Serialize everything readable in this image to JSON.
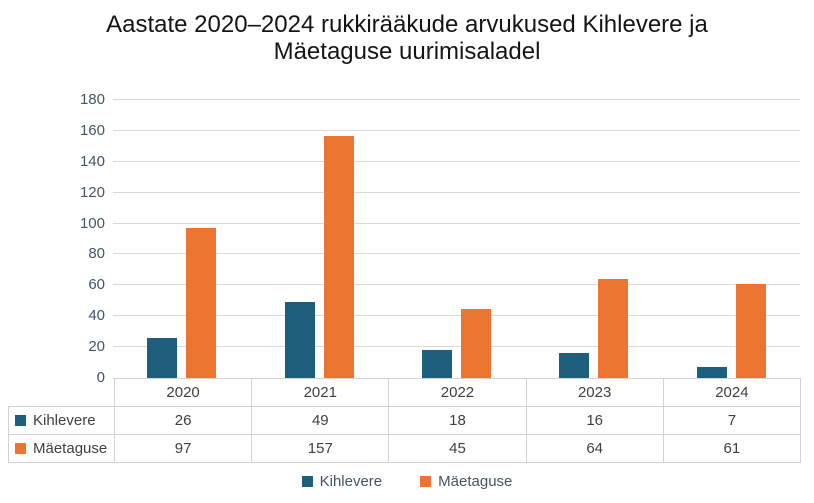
{
  "header": {
    "lines": [
      "Aastate 2020–2024 rukkirääkude arvukused Kihlevere ja",
      "Mäetaguse uurimisaladel"
    ]
  },
  "chart_data": {
    "type": "bar",
    "title": "Aastate 2020–2024 rukkirääkude arvukused Kihlevere ja Mäetaguse uurimisaladel",
    "categories": [
      "2020",
      "2021",
      "2022",
      "2023",
      "2024"
    ],
    "series": [
      {
        "name": "Kihlevere",
        "color": "#1F5F7E",
        "values": [
          26,
          49,
          18,
          16,
          7
        ]
      },
      {
        "name": "Mäetaguse",
        "color": "#EC7532",
        "values": [
          97,
          157,
          45,
          64,
          61
        ]
      }
    ],
    "xlabel": "",
    "ylabel": "",
    "ylim": [
      0,
      180
    ],
    "ytick_step": 20,
    "grid": "horizontal",
    "legend_position": "bottom",
    "show_data_table": true
  },
  "colors": {
    "grid_line": "#D9D9D9",
    "axis_line": "#C9C9C9",
    "table_border": "#D2D2D2",
    "tick_text": "#44546A",
    "table_text": "#404040",
    "title_text": "#151515"
  }
}
